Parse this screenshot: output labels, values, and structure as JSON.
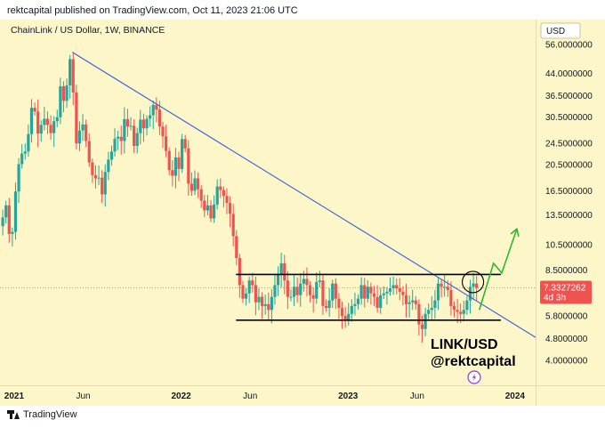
{
  "header": {
    "publish_line": "rektcapital published on TradingView.com, Oct 11, 2023 21:06 UTC"
  },
  "footer": {
    "brand": "TradingView"
  },
  "colors": {
    "up": "#26a69a",
    "down": "#ef5350",
    "trendline": "#3b5bdb",
    "range_lines": "#000000",
    "projection": "#2fb82f",
    "background": "#fcf6c8",
    "last_price_bg": "#ef5350"
  },
  "chart_data": {
    "type": "candlestick",
    "title": "ChainLink / US Dollar, 1W, BINANCE",
    "symbol_label": "LINK/USD",
    "author_label": "@rektcapital",
    "currency": "USD",
    "y_scale": "log",
    "ylim": [
      3.5,
      64
    ],
    "xlim": [
      "2020-12-01",
      "2024-02-15"
    ],
    "y_ticks": [
      "56.0000000",
      "44.0000000",
      "36.5000000",
      "30.5000000",
      "24.5000000",
      "20.5000000",
      "16.5000000",
      "13.5000000",
      "10.5000000",
      "8.5000000",
      "5.8000000",
      "4.8000000",
      "4.0000000"
    ],
    "x_ticks": [
      {
        "label": "2021",
        "date": "2021-01-01",
        "bold": true
      },
      {
        "label": "Jun",
        "date": "2021-06-01",
        "bold": false
      },
      {
        "label": "2022",
        "date": "2022-01-01",
        "bold": true
      },
      {
        "label": "Jun",
        "date": "2022-06-01",
        "bold": false
      },
      {
        "label": "2023",
        "date": "2023-01-01",
        "bold": true
      },
      {
        "label": "Jun",
        "date": "2023-06-01",
        "bold": false
      },
      {
        "label": "2024",
        "date": "2024-01-01",
        "bold": true
      }
    ],
    "last_price": {
      "value": "7.3327262",
      "countdown": "4d 3h"
    },
    "trendline": {
      "start": [
        "2021-05-08",
        52.5
      ],
      "end": [
        "2024-02-15",
        4.85
      ]
    },
    "range_lines": [
      {
        "label": "range-top",
        "value": 8.2,
        "start": "2022-05-01",
        "end": "2023-12-01"
      },
      {
        "label": "range-bottom",
        "value": 5.6,
        "start": "2022-05-01",
        "end": "2023-12-01"
      }
    ],
    "projection_path": [
      [
        "2023-10-15",
        6.1
      ],
      [
        "2023-11-15",
        9.0
      ],
      [
        "2023-12-03",
        8.3
      ],
      [
        "2024-01-05",
        12.0
      ]
    ],
    "highlight_circle": {
      "date": "2023-10-01",
      "value": 7.7
    },
    "weekly_closes": [
      [
        "2020-12-07",
        13.2
      ],
      [
        "2020-12-14",
        14.6
      ],
      [
        "2020-12-21",
        11.5
      ],
      [
        "2020-12-28",
        11.7
      ],
      [
        "2021-01-04",
        16.4
      ],
      [
        "2021-01-11",
        20.6
      ],
      [
        "2021-01-18",
        22.5
      ],
      [
        "2021-01-25",
        22.9
      ],
      [
        "2021-02-01",
        26.5
      ],
      [
        "2021-02-08",
        33.0
      ],
      [
        "2021-02-15",
        32.0
      ],
      [
        "2021-02-22",
        26.6
      ],
      [
        "2021-03-01",
        28.6
      ],
      [
        "2021-03-08",
        30.1
      ],
      [
        "2021-03-15",
        28.6
      ],
      [
        "2021-03-22",
        26.7
      ],
      [
        "2021-03-29",
        29.5
      ],
      [
        "2021-04-05",
        30.5
      ],
      [
        "2021-04-12",
        39.5
      ],
      [
        "2021-04-19",
        35.0
      ],
      [
        "2021-04-26",
        39.8
      ],
      [
        "2021-05-03",
        49.5
      ],
      [
        "2021-05-10",
        37.5
      ],
      [
        "2021-05-17",
        24.5
      ],
      [
        "2021-05-24",
        27.3
      ],
      [
        "2021-05-31",
        28.7
      ],
      [
        "2021-06-07",
        25.0
      ],
      [
        "2021-06-14",
        20.9
      ],
      [
        "2021-06-21",
        18.8
      ],
      [
        "2021-06-28",
        18.3
      ],
      [
        "2021-07-05",
        18.4
      ],
      [
        "2021-07-12",
        16.0
      ],
      [
        "2021-07-19",
        19.3
      ],
      [
        "2021-07-26",
        21.4
      ],
      [
        "2021-08-02",
        22.9
      ],
      [
        "2021-08-09",
        25.5
      ],
      [
        "2021-08-16",
        25.9
      ],
      [
        "2021-08-23",
        25.0
      ],
      [
        "2021-08-30",
        30.0
      ],
      [
        "2021-09-06",
        28.2
      ],
      [
        "2021-09-13",
        28.4
      ],
      [
        "2021-09-20",
        24.0
      ],
      [
        "2021-09-27",
        26.7
      ],
      [
        "2021-10-04",
        29.9
      ],
      [
        "2021-10-11",
        27.8
      ],
      [
        "2021-10-18",
        30.1
      ],
      [
        "2021-10-25",
        31.0
      ],
      [
        "2021-11-01",
        33.8
      ],
      [
        "2021-11-08",
        32.5
      ],
      [
        "2021-11-15",
        28.2
      ],
      [
        "2021-11-22",
        26.0
      ],
      [
        "2021-11-29",
        23.0
      ],
      [
        "2021-12-06",
        19.6
      ],
      [
        "2021-12-13",
        18.7
      ],
      [
        "2021-12-20",
        21.8
      ],
      [
        "2021-12-27",
        19.8
      ],
      [
        "2022-01-03",
        25.4
      ],
      [
        "2022-01-10",
        23.5
      ],
      [
        "2022-01-17",
        17.5
      ],
      [
        "2022-01-24",
        16.5
      ],
      [
        "2022-01-31",
        18.3
      ],
      [
        "2022-02-07",
        16.7
      ],
      [
        "2022-02-14",
        15.2
      ],
      [
        "2022-02-21",
        14.0
      ],
      [
        "2022-02-28",
        14.6
      ],
      [
        "2022-03-07",
        13.1
      ],
      [
        "2022-03-14",
        14.7
      ],
      [
        "2022-03-21",
        17.1
      ],
      [
        "2022-03-28",
        16.6
      ],
      [
        "2022-04-04",
        15.8
      ],
      [
        "2022-04-11",
        14.9
      ],
      [
        "2022-04-18",
        13.6
      ],
      [
        "2022-04-25",
        11.3
      ],
      [
        "2022-05-02",
        9.4
      ],
      [
        "2022-05-09",
        7.5
      ],
      [
        "2022-05-16",
        6.7
      ],
      [
        "2022-05-23",
        7.0
      ],
      [
        "2022-05-30",
        7.8
      ],
      [
        "2022-06-06",
        7.5
      ],
      [
        "2022-06-13",
        6.5
      ],
      [
        "2022-06-20",
        6.8
      ],
      [
        "2022-06-27",
        6.3
      ],
      [
        "2022-07-04",
        6.4
      ],
      [
        "2022-07-11",
        6.1
      ],
      [
        "2022-07-18",
        6.8
      ],
      [
        "2022-07-25",
        7.5
      ],
      [
        "2022-08-01",
        8.2
      ],
      [
        "2022-08-08",
        9.0
      ],
      [
        "2022-08-15",
        7.8
      ],
      [
        "2022-08-22",
        6.8
      ],
      [
        "2022-08-29",
        6.8
      ],
      [
        "2022-09-05",
        7.4
      ],
      [
        "2022-09-12",
        6.9
      ],
      [
        "2022-09-19",
        7.6
      ],
      [
        "2022-09-26",
        7.9
      ],
      [
        "2022-10-03",
        7.5
      ],
      [
        "2022-10-10",
        6.9
      ],
      [
        "2022-10-17",
        6.7
      ],
      [
        "2022-10-24",
        7.7
      ],
      [
        "2022-10-31",
        7.8
      ],
      [
        "2022-11-07",
        6.3
      ],
      [
        "2022-11-14",
        6.2
      ],
      [
        "2022-11-21",
        6.6
      ],
      [
        "2022-11-28",
        7.6
      ],
      [
        "2022-12-05",
        6.7
      ],
      [
        "2022-12-12",
        6.2
      ],
      [
        "2022-12-19",
        5.8
      ],
      [
        "2022-12-26",
        5.6
      ],
      [
        "2023-01-02",
        5.9
      ],
      [
        "2023-01-09",
        6.3
      ],
      [
        "2023-01-16",
        6.4
      ],
      [
        "2023-01-23",
        6.7
      ],
      [
        "2023-01-30",
        7.5
      ],
      [
        "2023-02-06",
        6.7
      ],
      [
        "2023-02-13",
        7.4
      ],
      [
        "2023-02-20",
        7.0
      ],
      [
        "2023-02-27",
        6.8
      ],
      [
        "2023-03-06",
        6.2
      ],
      [
        "2023-03-13",
        6.9
      ],
      [
        "2023-03-20",
        7.0
      ],
      [
        "2023-03-27",
        7.1
      ],
      [
        "2023-04-03",
        7.3
      ],
      [
        "2023-04-10",
        7.5
      ],
      [
        "2023-04-17",
        7.3
      ],
      [
        "2023-04-24",
        7.1
      ],
      [
        "2023-05-01",
        6.9
      ],
      [
        "2023-05-08",
        6.4
      ],
      [
        "2023-05-15",
        6.5
      ],
      [
        "2023-05-22",
        6.6
      ],
      [
        "2023-05-29",
        6.4
      ],
      [
        "2023-06-05",
        5.4
      ],
      [
        "2023-06-12",
        5.2
      ],
      [
        "2023-06-19",
        5.9
      ],
      [
        "2023-06-26",
        6.1
      ],
      [
        "2023-07-03",
        6.2
      ],
      [
        "2023-07-10",
        6.6
      ],
      [
        "2023-07-17",
        7.6
      ],
      [
        "2023-07-24",
        7.4
      ],
      [
        "2023-07-31",
        7.4
      ],
      [
        "2023-08-07",
        7.2
      ],
      [
        "2023-08-14",
        6.3
      ],
      [
        "2023-08-21",
        6.1
      ],
      [
        "2023-08-28",
        6.0
      ],
      [
        "2023-09-04",
        5.9
      ],
      [
        "2023-09-11",
        6.1
      ],
      [
        "2023-09-18",
        6.6
      ],
      [
        "2023-09-25",
        7.4
      ],
      [
        "2023-10-02",
        7.6
      ],
      [
        "2023-10-09",
        7.33
      ]
    ]
  }
}
